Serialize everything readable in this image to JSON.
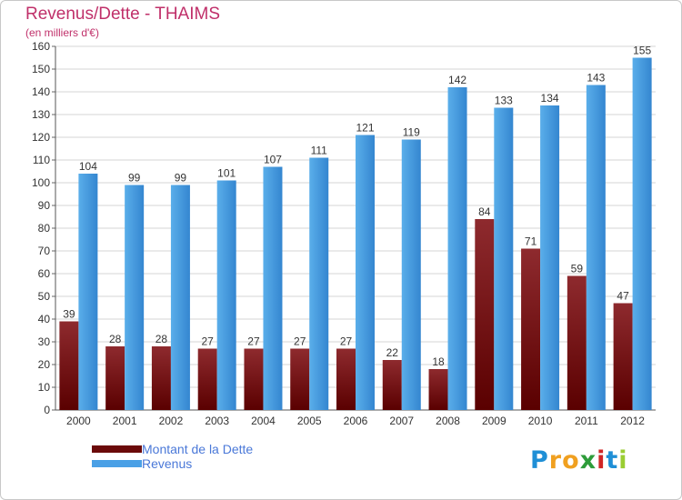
{
  "header": {
    "title": "Revenus/Dette - THAIMS",
    "subtitle": "(en milliers d'€)"
  },
  "chart_data": {
    "type": "bar",
    "title": "Revenus/Dette - THAIMS",
    "subtitle": "(en milliers d'€)",
    "xlabel": "",
    "ylabel": "",
    "categories": [
      "2000",
      "2001",
      "2002",
      "2003",
      "2004",
      "2005",
      "2006",
      "2007",
      "2008",
      "2009",
      "2010",
      "2011",
      "2012"
    ],
    "series": [
      {
        "name": "Montant de la Dette",
        "color": "#8b1a1a",
        "values": [
          39,
          28,
          28,
          27,
          27,
          27,
          27,
          22,
          18,
          84,
          71,
          59,
          47
        ]
      },
      {
        "name": "Revenus",
        "color": "#3a8fd8",
        "values": [
          104,
          99,
          99,
          101,
          107,
          111,
          121,
          119,
          142,
          133,
          134,
          143,
          155
        ]
      }
    ],
    "ylim": [
      0,
      160
    ],
    "yticks": [
      0,
      10,
      20,
      30,
      40,
      50,
      60,
      70,
      80,
      90,
      100,
      110,
      120,
      130,
      140,
      150,
      160
    ],
    "grid": true,
    "legend": "bottom-left"
  },
  "legend": {
    "items": [
      {
        "label": "Montant de la Dette",
        "color": "#6b0a0a"
      },
      {
        "label": "Revenus",
        "color": "#4aa0e6"
      }
    ]
  },
  "logo": {
    "letters": [
      "P",
      "r",
      "o",
      "x",
      "i",
      "t",
      "i"
    ],
    "colors": [
      "#1f8fd6",
      "#f0a020",
      "#f0a020",
      "#2e9c3a",
      "#d02525",
      "#1f8fd6",
      "#9acd32"
    ]
  }
}
